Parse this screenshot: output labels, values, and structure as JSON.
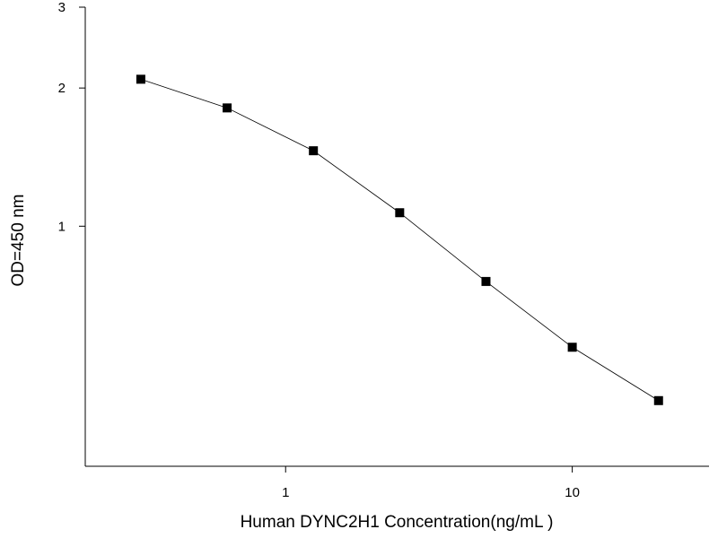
{
  "chart_data": {
    "type": "line",
    "x_label": "Human DYNC2H1 Concentration(ng/mL )",
    "y_label": "OD=450 nm",
    "x": [
      0.3125,
      0.625,
      1.25,
      2.5,
      5,
      10,
      20
    ],
    "series": [
      {
        "color": "#000000",
        "values": [
          2.09,
          1.81,
          1.46,
          1.07,
          0.758,
          0.545,
          0.417
        ]
      }
    ],
    "xlim": [
      0.2,
      30
    ],
    "ylim": [
      0.3,
      3
    ],
    "xticks": [
      1,
      10
    ],
    "yticks": [
      1,
      2,
      3
    ],
    "xlog": true,
    "ylog": true,
    "grid": false
  }
}
